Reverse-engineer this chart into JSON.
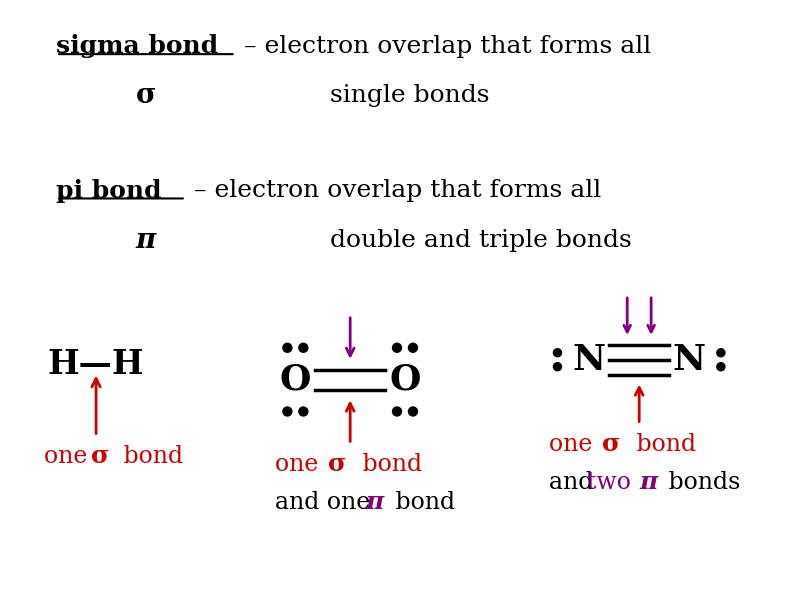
{
  "bg_color": "#ffffff",
  "title_sigma_text1": "sigma bond",
  "title_sigma_text2": " – electron overlap that forms all",
  "title_sigma_text3": "single bonds",
  "title_sigma_symbol": "σ",
  "title_pi_text1": "pi bond",
  "title_pi_text2": " – electron overlap that forms all",
  "title_pi_text3": "double and triple bonds",
  "title_pi_symbol": "π",
  "hh_label": "H—H",
  "hh_caption1_pre": "one ",
  "hh_caption1_sigma": "σ",
  "hh_caption1_post": " bond",
  "o2_caption1_pre": "one ",
  "o2_caption1_sigma": "σ",
  "o2_caption1_post": " bond",
  "o2_caption2_pre": "and one ",
  "o2_caption2_pi": "π",
  "o2_caption2_post": " bond",
  "n2_caption1_pre": "one ",
  "n2_caption1_sigma": "σ",
  "n2_caption1_post": " bond",
  "n2_caption2_pre": "and ",
  "n2_caption2_two": "two ",
  "n2_caption2_pi": "π",
  "n2_caption2_post": " bonds",
  "red": "#cc0000",
  "purple": "#800080",
  "black": "#000000",
  "font_size_title": 18,
  "font_size_mol": 22,
  "font_size_caption": 17
}
